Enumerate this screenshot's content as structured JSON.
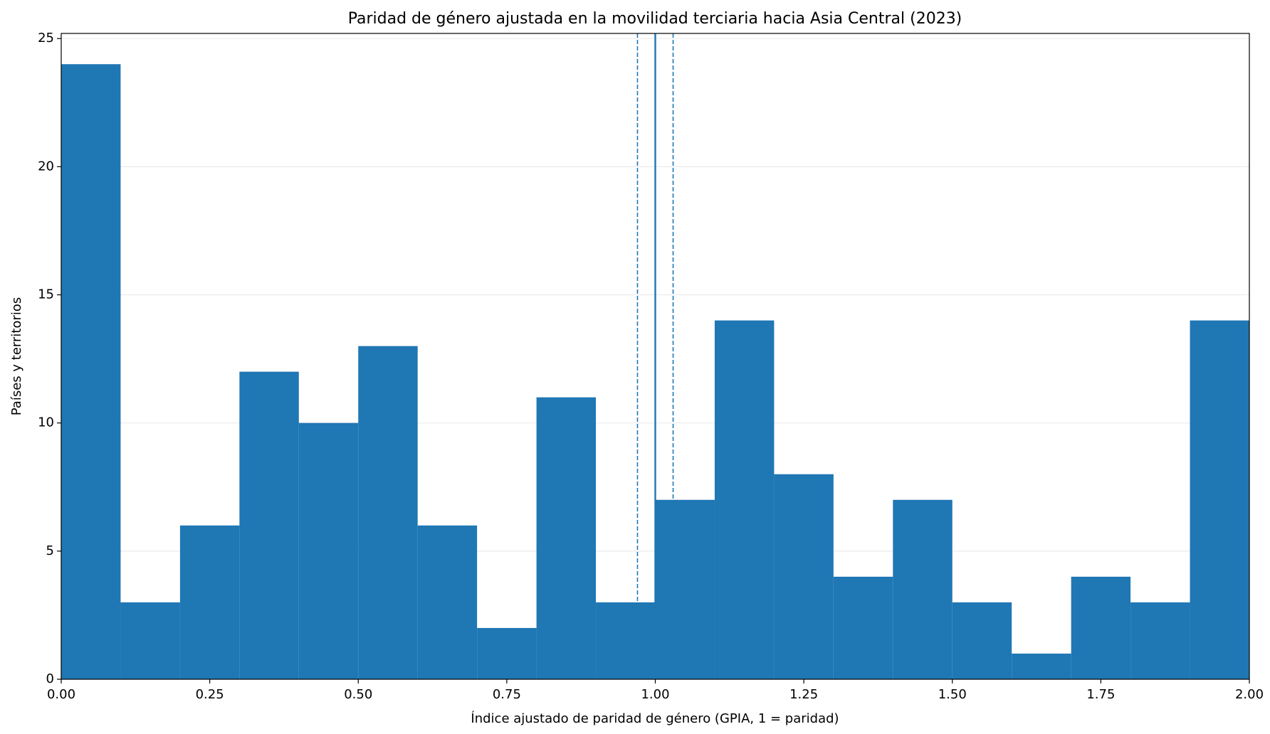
{
  "chart_data": {
    "type": "histogram",
    "title": "Paridad de género ajustada en la movilidad terciaria hacia Asia Central (2023)",
    "x_label": "Índice ajustado de paridad de género (GPIA, 1 = paridad)",
    "y_label": "Países y territorios",
    "bins": [
      0,
      0.1,
      0.2,
      0.3,
      0.4,
      0.5,
      0.6,
      0.7,
      0.8,
      0.9,
      1.0,
      1.1,
      1.2,
      1.3,
      1.4,
      1.5,
      1.6,
      1.7,
      1.8,
      1.9,
      2.0
    ],
    "values": [
      24,
      3,
      6,
      12,
      10,
      13,
      6,
      2,
      11,
      3,
      7,
      14,
      8,
      4,
      7,
      3,
      1,
      4,
      3,
      14
    ],
    "color": "#1f77b4",
    "reference_lines": [
      {
        "value": 0.97,
        "style": "dashed"
      },
      {
        "value": 1,
        "style": "solid"
      },
      {
        "value": 1.03,
        "style": "dashed"
      }
    ],
    "xlim": [
      0,
      2
    ],
    "ylim": [
      0,
      25.2
    ],
    "xticks": [
      {
        "value": 0,
        "label": "0.00"
      },
      {
        "value": 0.25,
        "label": "0.25"
      },
      {
        "value": 0.5,
        "label": "0.50"
      },
      {
        "value": 0.75,
        "label": "0.75"
      },
      {
        "value": 1,
        "label": "1.00"
      },
      {
        "value": 1.25,
        "label": "1.25"
      },
      {
        "value": 1.5,
        "label": "1.50"
      },
      {
        "value": 1.75,
        "label": "1.75"
      },
      {
        "value": 2,
        "label": "2.00"
      }
    ],
    "yticks": [
      0,
      5,
      10,
      15,
      20,
      25
    ],
    "grid": true
  }
}
